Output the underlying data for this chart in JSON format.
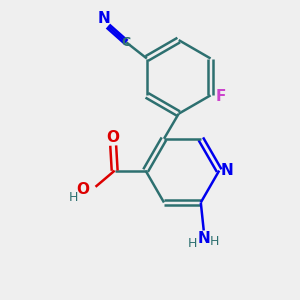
{
  "bg_color": "#efefef",
  "bond_color": "#2d7070",
  "N_color": "#0000ee",
  "O_color": "#dd0000",
  "F_color": "#cc44cc",
  "lw": 1.8,
  "dbl_off": 0.09,
  "xlim": [
    0,
    10
  ],
  "ylim": [
    0,
    10
  ]
}
